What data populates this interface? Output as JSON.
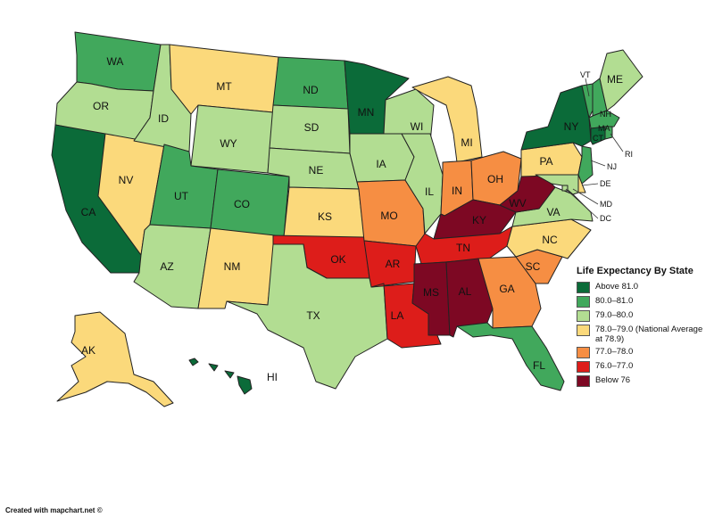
{
  "legend": {
    "title": "Life Expectancy By State",
    "items": [
      {
        "label": "Above 81.0",
        "color": "#0b6b39"
      },
      {
        "label": "80.0–81.0",
        "color": "#41a85c"
      },
      {
        "label": "79.0–80.0",
        "color": "#b2dd92"
      },
      {
        "label": "78.0–79.0 (National Average at 78.9)",
        "color": "#fbd97b"
      },
      {
        "label": "77.0–78.0",
        "color": "#f68e43"
      },
      {
        "label": "76.0–77.0",
        "color": "#dd1d1a"
      },
      {
        "label": "Below 76",
        "color": "#7d0823"
      }
    ]
  },
  "states": [
    {
      "abbr": "WA",
      "tier": 1
    },
    {
      "abbr": "OR",
      "tier": 2
    },
    {
      "abbr": "CA",
      "tier": 0
    },
    {
      "abbr": "NV",
      "tier": 3
    },
    {
      "abbr": "ID",
      "tier": 2
    },
    {
      "abbr": "MT",
      "tier": 3
    },
    {
      "abbr": "WY",
      "tier": 2
    },
    {
      "abbr": "UT",
      "tier": 1
    },
    {
      "abbr": "CO",
      "tier": 1
    },
    {
      "abbr": "AZ",
      "tier": 2
    },
    {
      "abbr": "NM",
      "tier": 3
    },
    {
      "abbr": "ND",
      "tier": 1
    },
    {
      "abbr": "SD",
      "tier": 2
    },
    {
      "abbr": "NE",
      "tier": 2
    },
    {
      "abbr": "KS",
      "tier": 3
    },
    {
      "abbr": "OK",
      "tier": 5
    },
    {
      "abbr": "TX",
      "tier": 2
    },
    {
      "abbr": "MN",
      "tier": 0
    },
    {
      "abbr": "IA",
      "tier": 2
    },
    {
      "abbr": "MO",
      "tier": 4
    },
    {
      "abbr": "AR",
      "tier": 5
    },
    {
      "abbr": "LA",
      "tier": 5
    },
    {
      "abbr": "WI",
      "tier": 2
    },
    {
      "abbr": "IL",
      "tier": 2
    },
    {
      "abbr": "MI",
      "tier": 3
    },
    {
      "abbr": "IN",
      "tier": 4
    },
    {
      "abbr": "OH",
      "tier": 4
    },
    {
      "abbr": "KY",
      "tier": 6
    },
    {
      "abbr": "TN",
      "tier": 5
    },
    {
      "abbr": "MS",
      "tier": 6
    },
    {
      "abbr": "AL",
      "tier": 6
    },
    {
      "abbr": "GA",
      "tier": 4
    },
    {
      "abbr": "FL",
      "tier": 1
    },
    {
      "abbr": "SC",
      "tier": 4
    },
    {
      "abbr": "NC",
      "tier": 3
    },
    {
      "abbr": "VA",
      "tier": 2
    },
    {
      "abbr": "WV",
      "tier": 6
    },
    {
      "abbr": "PA",
      "tier": 3
    },
    {
      "abbr": "NY",
      "tier": 0
    },
    {
      "abbr": "VT",
      "tier": 1
    },
    {
      "abbr": "NH",
      "tier": 1
    },
    {
      "abbr": "ME",
      "tier": 2
    },
    {
      "abbr": "MA",
      "tier": 1
    },
    {
      "abbr": "RI",
      "tier": 1
    },
    {
      "abbr": "CT",
      "tier": 0
    },
    {
      "abbr": "NJ",
      "tier": 1
    },
    {
      "abbr": "DE",
      "tier": 3
    },
    {
      "abbr": "MD",
      "tier": 2
    },
    {
      "abbr": "DC",
      "tier": 2
    },
    {
      "abbr": "AK",
      "tier": 3
    },
    {
      "abbr": "HI",
      "tier": 0
    }
  ],
  "credit": "Created with mapchart.net ©"
}
